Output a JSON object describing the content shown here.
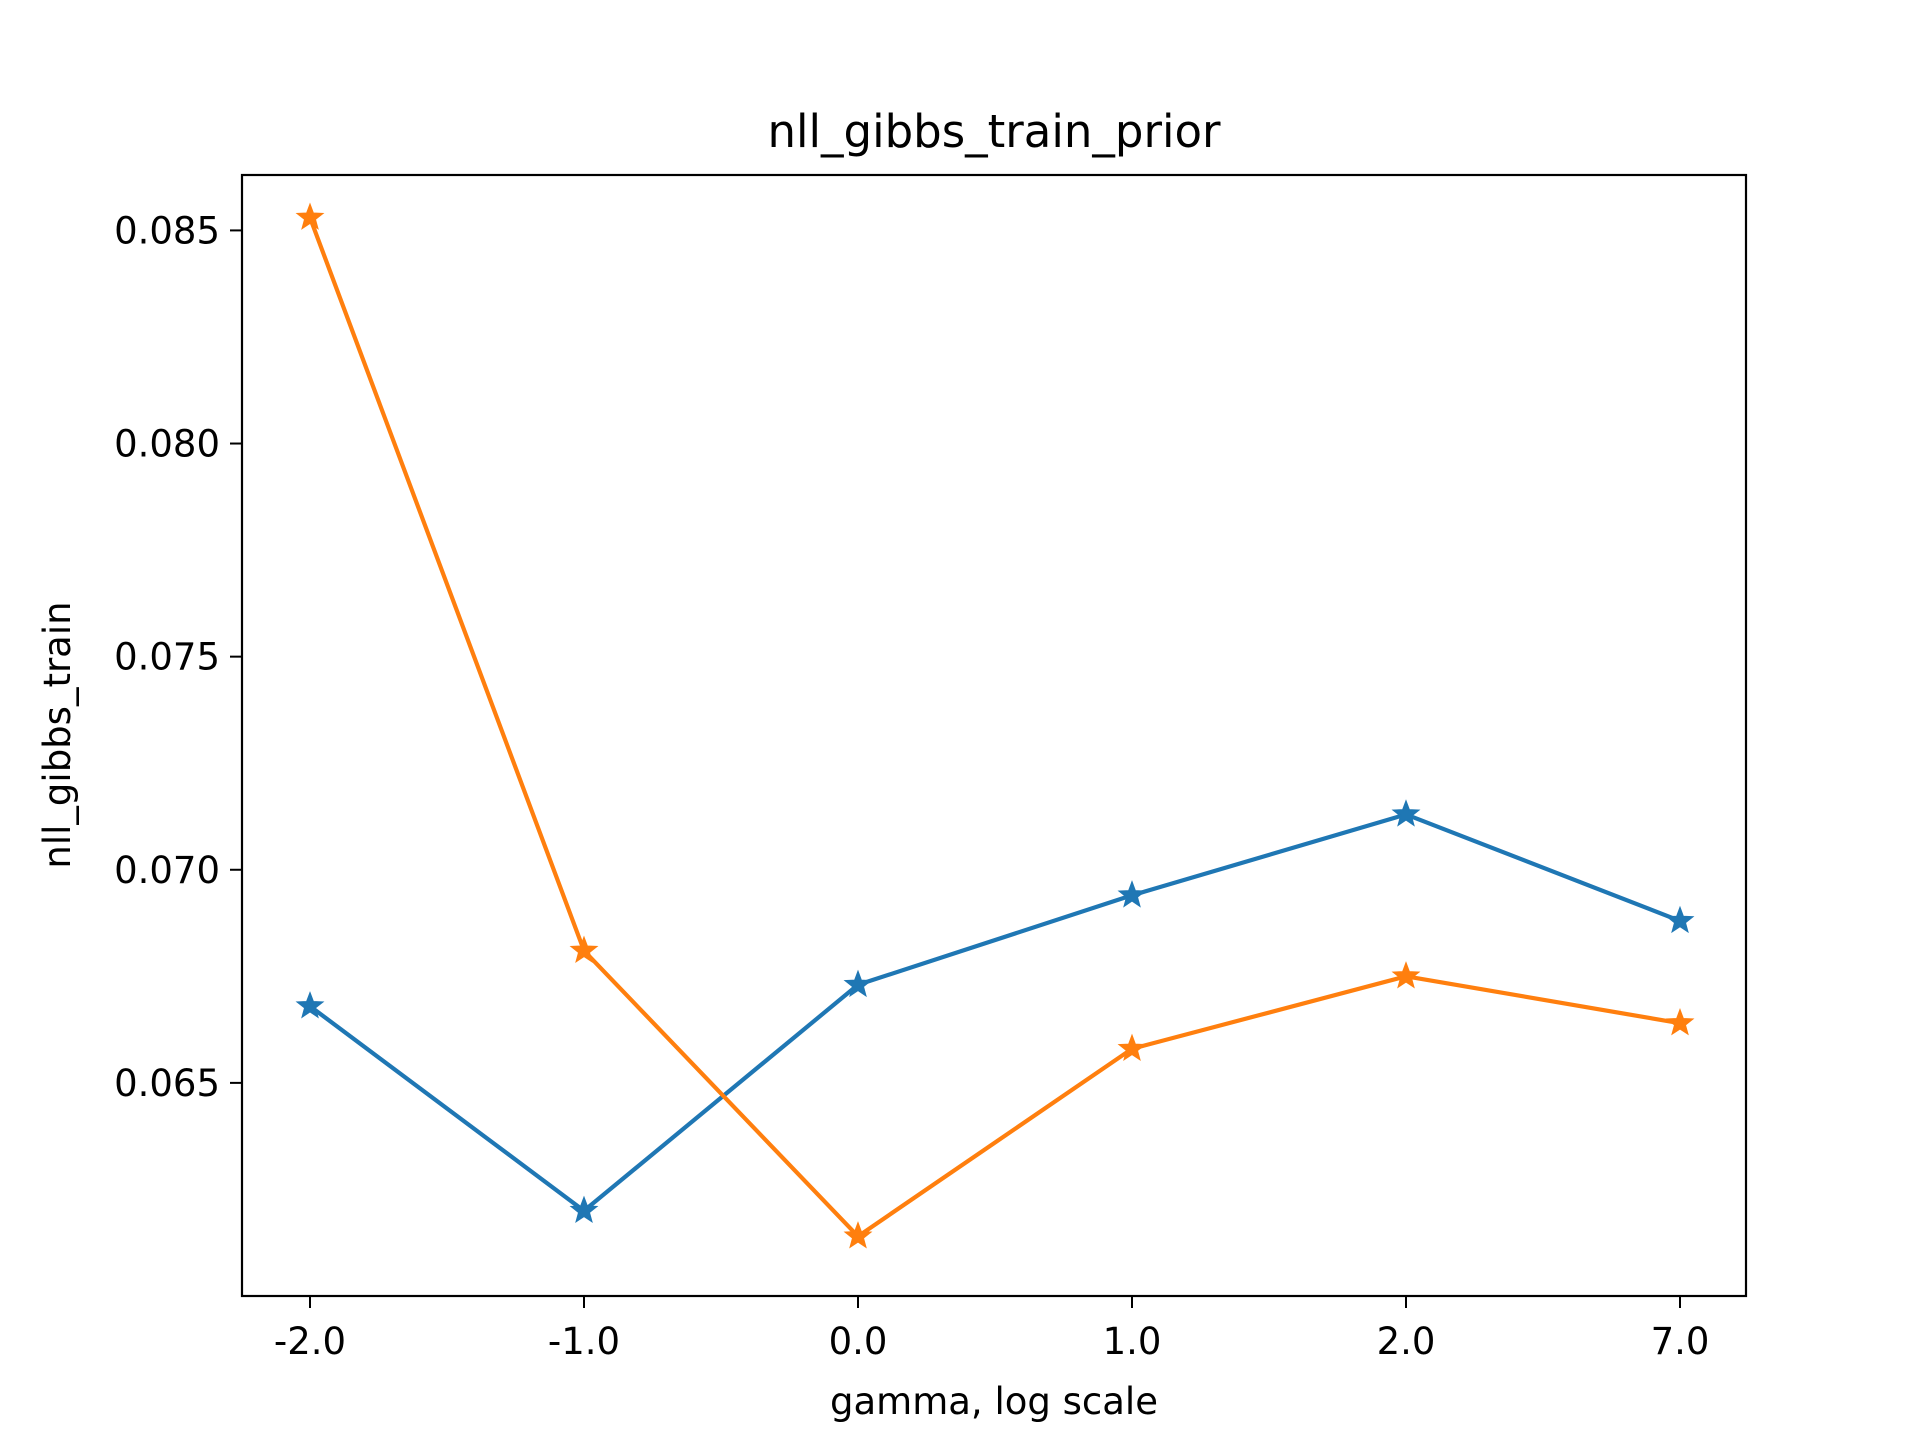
{
  "chart_data": {
    "type": "line",
    "title": "nll_gibbs_train_prior",
    "xlabel": "gamma, log scale",
    "ylabel": "nll_gibbs_train",
    "categories": [
      "-2.0",
      "-1.0",
      "0.0",
      "1.0",
      "2.0",
      "7.0"
    ],
    "yticks": [
      "0.065",
      "0.070",
      "0.075",
      "0.080",
      "0.085"
    ],
    "ylim": [
      0.06,
      0.0863
    ],
    "grid": false,
    "marker": "star",
    "series": [
      {
        "values": [
          0.0668,
          0.062,
          0.0673,
          0.0694,
          0.0713,
          0.0688
        ],
        "color": "#1f77b4"
      },
      {
        "values": [
          0.0853,
          0.0681,
          0.0614,
          0.0658,
          0.0675,
          0.0664
        ],
        "color": "#ff7f0e"
      }
    ]
  }
}
